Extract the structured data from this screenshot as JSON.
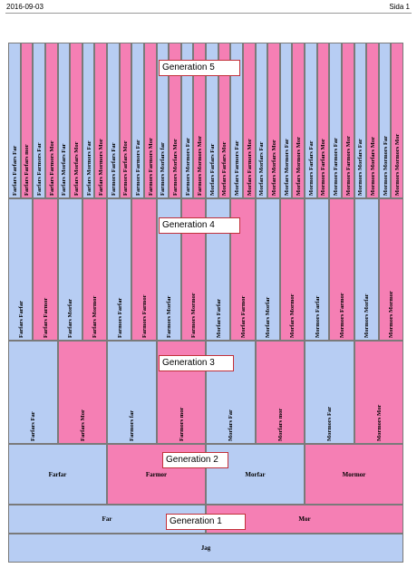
{
  "header": {
    "date": "2016-09-03",
    "page": "Sida 1"
  },
  "generations": [
    {
      "label": "Generation 5",
      "names": [
        "Farfars Farfars Far",
        "Farfars Farfars mor",
        "Farfars Farmors Far",
        "Farfars Farmors Mor",
        "Farfars Morfars Far",
        "Farfars Morfars Mor",
        "Farfars Mormors Far",
        "Farfars Mormors Mor",
        "Farmors Farfars Far",
        "Farmors Farfars Mor",
        "Farmors Farmors Far",
        "Farmors Farmors Mor",
        "Farmors Morfars far",
        "Farmors Morfars Mor",
        "Farmors Mormors Far",
        "Farmors Mormors Mor",
        "Morfars Farfars Far",
        "Morfars Farfars Mor",
        "Morfars Farmors Far",
        "Morfars Farmors Mor",
        "Morfars Morfars Far",
        "Morfars Morfars Mor",
        "Morfars Mormors Far",
        "Morfars Mormors Mor",
        "Mormors Farfars Far",
        "Mormors Farfars Mor",
        "Mormors Farmors Far",
        "Mormors Farmors Mor",
        "Mormors Morfars Far",
        "Mormors Morfars Mor",
        "Mormors Mormors Far",
        "Mormors Mormors Mor"
      ]
    },
    {
      "label": "Generation 4",
      "names": [
        "Farfars Farfar",
        "Farfars Farmor",
        "Farfars Morfar",
        "Farfars Mormor",
        "Farmors Farfar",
        "Farmors Farmor",
        "Farmors Morfar",
        "Farmors Mormor",
        "Morfars Farfar",
        "Morfars Farmor",
        "Morfars Morfar",
        "Morfars Mormor",
        "Mormors Farfar",
        "Mormors Farmor",
        "Mormors Morfar",
        "Mormors Mormor"
      ]
    },
    {
      "label": "Generation 3",
      "names": [
        "Farfars Far",
        "Farfars Mor",
        "Farmors far",
        "Farmors mor",
        "Morfars Far",
        "Morfars mor",
        "Mormors Far",
        "Mormors Mor"
      ]
    },
    {
      "label": "Generation 2",
      "names": [
        "Farfar",
        "Farmor",
        "Morfar",
        "Mormor"
      ]
    },
    {
      "label": "Generation 1",
      "names": [
        "Far",
        "Mor"
      ]
    },
    {
      "label": "",
      "names": [
        "Jag"
      ]
    }
  ]
}
